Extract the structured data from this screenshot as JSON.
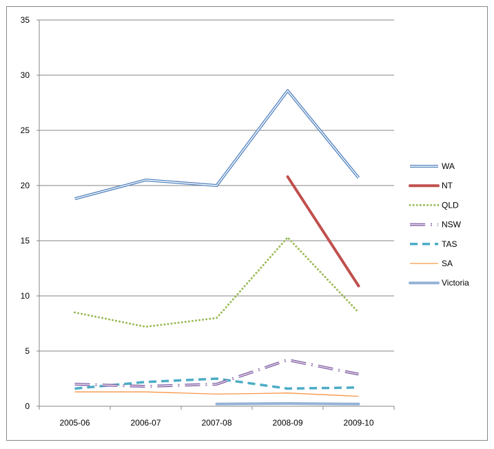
{
  "chart_data": {
    "type": "line",
    "title": "",
    "xlabel": "",
    "ylabel": "",
    "ylim": [
      0,
      35
    ],
    "yticks": [
      0,
      5,
      10,
      15,
      20,
      25,
      30,
      35
    ],
    "grid": true,
    "legend_position": "right",
    "categories": [
      "2005-06",
      "2006-07",
      "2007-08",
      "2008-09",
      "2009-10"
    ],
    "series": [
      {
        "name": "WA",
        "color": "#4f81bd",
        "style": "double",
        "values": [
          18.8,
          20.5,
          20.0,
          28.6,
          20.7
        ]
      },
      {
        "name": "NT",
        "color": "#c0504d",
        "style": "thick",
        "values": [
          null,
          null,
          null,
          20.8,
          10.9
        ]
      },
      {
        "name": "QLD",
        "color": "#9bbb59",
        "style": "dotted",
        "values": [
          8.5,
          7.2,
          8.0,
          15.3,
          8.5
        ]
      },
      {
        "name": "NSW",
        "color": "#8064a2",
        "style": "longdash-double",
        "values": [
          2.0,
          1.8,
          2.0,
          4.2,
          2.9
        ]
      },
      {
        "name": "TAS",
        "color": "#4bacc6",
        "style": "dashed",
        "values": [
          1.6,
          2.2,
          2.5,
          1.6,
          1.7
        ]
      },
      {
        "name": "SA",
        "color": "#f79646",
        "style": "thin",
        "values": [
          1.3,
          1.3,
          1.1,
          1.2,
          0.9
        ]
      },
      {
        "name": "Victoria",
        "color": "#95b3d7",
        "style": "wide",
        "values": [
          null,
          null,
          0.2,
          0.25,
          0.2
        ]
      }
    ]
  }
}
